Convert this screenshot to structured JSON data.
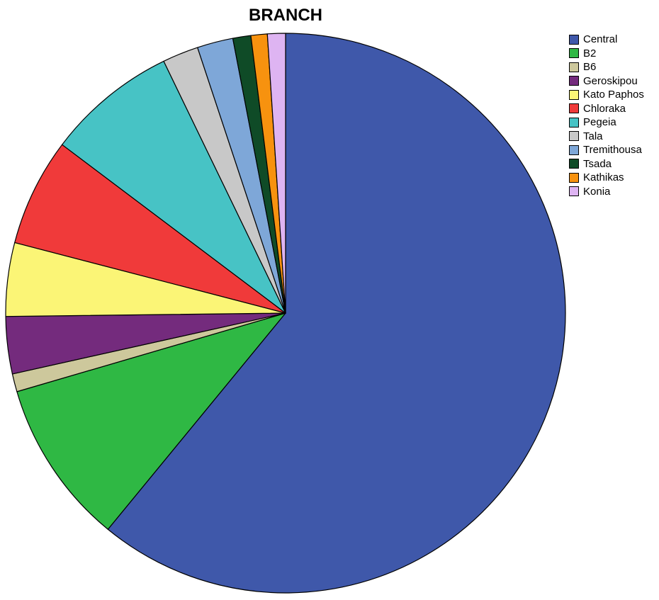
{
  "chart_data": {
    "type": "pie",
    "title": "BRANCH",
    "legend_position": "top-right",
    "categories": [
      "Central",
      "B2",
      "B6",
      "Geroskipou",
      "Kato Paphos",
      "Chloraka",
      "Pegeia",
      "Tala",
      "Tremithousa",
      "Tsada",
      "Kathikas",
      "Konia"
    ],
    "values": [
      64.6,
      10.1,
      1.1,
      3.5,
      4.5,
      6.6,
      8.0,
      2.2,
      2.2,
      1.1,
      1.0,
      1.1
    ],
    "colors": [
      "#3f58aa",
      "#2fb844",
      "#cdc89c",
      "#742b7d",
      "#fbf576",
      "#f03a3a",
      "#47c3c5",
      "#c8c8c8",
      "#7ea7d8",
      "#0f4b27",
      "#f7920f",
      "#deb4f2"
    ],
    "slice_order": "clockwise from 12 o'clock"
  }
}
